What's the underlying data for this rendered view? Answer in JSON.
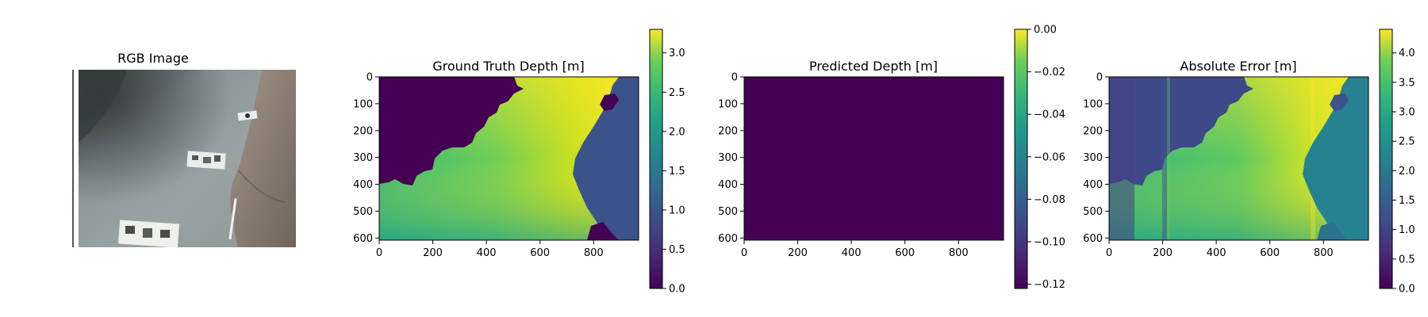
{
  "figure": {
    "colormap": "viridis",
    "colors": {
      "dark_purple": "#440154",
      "mid_blue": "#3b528b",
      "teal": "#21908d",
      "green": "#5dc963",
      "yellow": "#fde725"
    }
  },
  "chart_data": [
    {
      "type": "image",
      "title": "RGB Image",
      "axes_visible": false,
      "content": "underwater scene, sandy seabed with calibration targets and a rock on the right"
    },
    {
      "type": "heatmap",
      "title": "Ground Truth Depth [m]",
      "x_ticks": [
        "0",
        "200",
        "400",
        "600",
        "800"
      ],
      "y_ticks": [
        "0",
        "100",
        "200",
        "300",
        "400",
        "500",
        "600"
      ],
      "xlim": [
        0,
        968
      ],
      "ylim": [
        608,
        0
      ],
      "colorbar": {
        "min": 0.0,
        "max": 3.3,
        "ticks": [
          "0.0",
          "0.5",
          "1.0",
          "1.5",
          "2.0",
          "2.5",
          "3.0"
        ],
        "tick_values": [
          0.0,
          0.5,
          1.0,
          1.5,
          2.0,
          2.5,
          3.0
        ]
      }
    },
    {
      "type": "heatmap",
      "title": "Predicted Depth [m]",
      "x_ticks": [
        "0",
        "200",
        "400",
        "600",
        "800"
      ],
      "y_ticks": [
        "0",
        "100",
        "200",
        "300",
        "400",
        "500",
        "600"
      ],
      "xlim": [
        0,
        968
      ],
      "ylim": [
        608,
        0
      ],
      "colorbar": {
        "min": -0.122,
        "max": 0.0,
        "ticks": [
          "0.00",
          "−0.02",
          "−0.04",
          "−0.06",
          "−0.08",
          "−0.10",
          "−0.12"
        ],
        "tick_values": [
          0.0,
          -0.02,
          -0.04,
          -0.06,
          -0.08,
          -0.1,
          -0.12
        ]
      }
    },
    {
      "type": "heatmap",
      "title": "Absolute Error [m]",
      "x_ticks": [
        "0",
        "200",
        "400",
        "600",
        "800"
      ],
      "y_ticks": [
        "0",
        "100",
        "200",
        "300",
        "400",
        "500",
        "600"
      ],
      "xlim": [
        0,
        968
      ],
      "ylim": [
        608,
        0
      ],
      "colorbar": {
        "min": 0.0,
        "max": 4.4,
        "ticks": [
          "0.0",
          "0.5",
          "1.0",
          "1.5",
          "2.0",
          "2.5",
          "3.0",
          "3.5",
          "4.0"
        ],
        "tick_values": [
          0.0,
          0.5,
          1.0,
          1.5,
          2.0,
          2.5,
          3.0,
          3.5,
          4.0
        ]
      }
    }
  ]
}
